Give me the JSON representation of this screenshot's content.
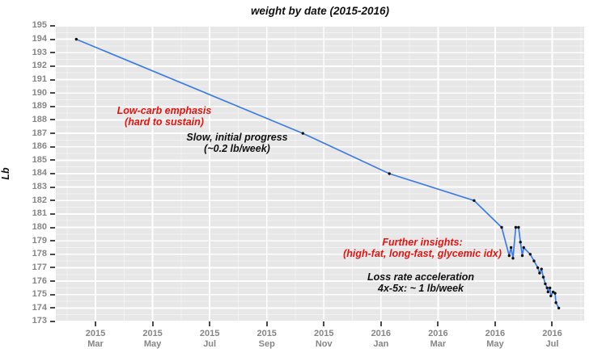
{
  "chart_data": {
    "type": "line",
    "title": "weight by date (2015-2016)",
    "xlabel": "",
    "ylabel": "Lb",
    "ylim": [
      173,
      195
    ],
    "y_tick_step": 1,
    "x_domain_months_since_2015_jan": [
      0.61,
      19.12
    ],
    "grid": {
      "panel_bg": "#e7e7e7",
      "major": "#ffffff",
      "minor": "#f2f2f2",
      "visible": true
    },
    "legend": "none",
    "x_ticks": [
      {
        "m": 2,
        "year": "2015",
        "month": "Mar"
      },
      {
        "m": 4,
        "year": "2015",
        "month": "May"
      },
      {
        "m": 6,
        "year": "2015",
        "month": "Jul"
      },
      {
        "m": 8,
        "year": "2015",
        "month": "Sep"
      },
      {
        "m": 10,
        "year": "2015",
        "month": "Nov"
      },
      {
        "m": 12,
        "year": "2016",
        "month": "Jan"
      },
      {
        "m": 14,
        "year": "2016",
        "month": "Mar"
      },
      {
        "m": 16,
        "year": "2016",
        "month": "May"
      },
      {
        "m": 18,
        "year": "2016",
        "month": "Jul"
      }
    ],
    "series": [
      {
        "name": "weight",
        "line_color": "#3d7ce8",
        "point_color": "#111111",
        "points": [
          {
            "date": "2015-02-11",
            "lb": 194.0
          },
          {
            "date": "2015-10-09",
            "lb": 187.0
          },
          {
            "date": "2016-01-10",
            "lb": 184.0
          },
          {
            "date": "2016-04-09",
            "lb": 182.0
          },
          {
            "date": "2016-05-08",
            "lb": 180.0
          },
          {
            "date": "2016-05-16",
            "lb": 177.9
          },
          {
            "date": "2016-05-18",
            "lb": 178.5
          },
          {
            "date": "2016-05-20",
            "lb": 177.7
          },
          {
            "date": "2016-05-23",
            "lb": 180.0
          },
          {
            "date": "2016-05-26",
            "lb": 180.0
          },
          {
            "date": "2016-05-28",
            "lb": 178.9
          },
          {
            "date": "2016-05-30",
            "lb": 177.9
          },
          {
            "date": "2016-06-01",
            "lb": 178.5
          },
          {
            "date": "2016-06-08",
            "lb": 178.0
          },
          {
            "date": "2016-06-12",
            "lb": 177.5
          },
          {
            "date": "2016-06-16",
            "lb": 177.0
          },
          {
            "date": "2016-06-18",
            "lb": 176.6
          },
          {
            "date": "2016-06-20",
            "lb": 176.9
          },
          {
            "date": "2016-06-22",
            "lb": 176.3
          },
          {
            "date": "2016-06-24",
            "lb": 175.8
          },
          {
            "date": "2016-06-26",
            "lb": 175.5
          },
          {
            "date": "2016-06-27",
            "lb": 175.2
          },
          {
            "date": "2016-06-29",
            "lb": 175.5
          },
          {
            "date": "2016-06-30",
            "lb": 174.9
          },
          {
            "date": "2016-07-02",
            "lb": 175.2
          },
          {
            "date": "2016-07-04",
            "lb": 175.1
          },
          {
            "date": "2016-07-05",
            "lb": 174.4
          },
          {
            "date": "2016-07-08",
            "lb": 174.0
          }
        ]
      }
    ],
    "annotations": [
      {
        "id": "low-carb",
        "color": "#e8130f",
        "line1": "Low-carb emphasis",
        "line2": "(hard to sustain)"
      },
      {
        "id": "slow-progress",
        "color": "#111111",
        "line1": "Slow, initial progress",
        "line2": "(~0.2 lb/week)"
      },
      {
        "id": "further-insights",
        "color": "#e8130f",
        "line1": "Further insights:",
        "line2": "(high-fat, long-fast, glycemic idx)"
      },
      {
        "id": "loss-rate",
        "color": "#111111",
        "line1": "Loss rate acceleration",
        "line2": "4x-5x: ~ 1 lb/week"
      }
    ]
  }
}
